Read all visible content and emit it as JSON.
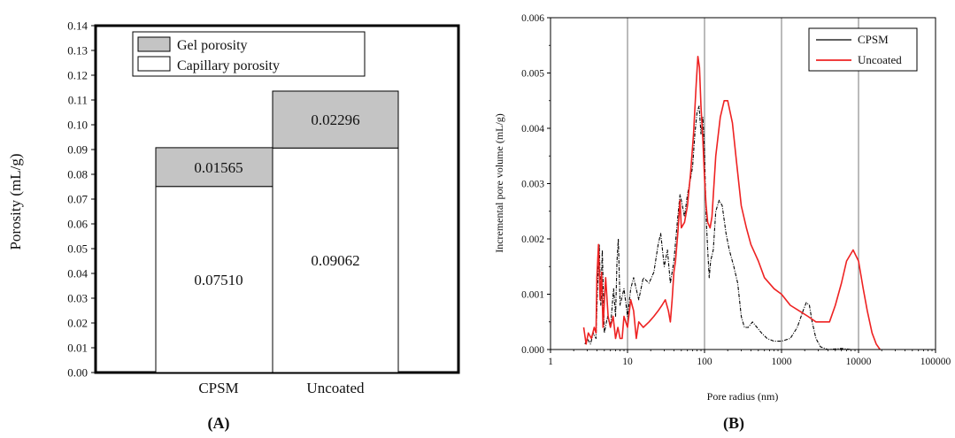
{
  "chart_data": [
    {
      "type": "bar",
      "panel_label": "(A)",
      "ylabel": "Porosity (mL/g)",
      "ylim": [
        0,
        0.14
      ],
      "ytick_step": 0.01,
      "categories": [
        "CPSM",
        "Uncoated"
      ],
      "series": [
        {
          "name": "Capillary porosity",
          "values": [
            0.0751,
            0.09062
          ],
          "labels": [
            "0.07510",
            "0.09062"
          ],
          "color": "#ffffff"
        },
        {
          "name": "Gel porosity",
          "values": [
            0.01565,
            0.02296
          ],
          "labels": [
            "0.01565",
            "0.02296"
          ],
          "color": "#c4c4c4"
        }
      ],
      "stacked": true,
      "legend": {
        "placement": "top",
        "order": [
          "Gel porosity",
          "Capillary porosity"
        ]
      }
    },
    {
      "type": "line",
      "panel_label": "(B)",
      "xlabel": "Pore radius (nm)",
      "ylabel": "Incremental pore volume  (mL/g)",
      "xscale": "log",
      "xlim": [
        1,
        100000
      ],
      "ylim": [
        0,
        0.006
      ],
      "xtick_labels": [
        "1",
        "10",
        "100",
        "1000",
        "10000",
        "100000"
      ],
      "ytick_labels": [
        "0.000",
        "0.001",
        "0.002",
        "0.003",
        "0.004",
        "0.005",
        "0.006"
      ],
      "vgrid_at": [
        10,
        100,
        1000,
        10000
      ],
      "legend": {
        "placement": "top-right"
      },
      "series": [
        {
          "name": "CPSM",
          "color": "#000000",
          "points": [
            [
              2.8,
              0.0001
            ],
            [
              3.0,
              0.0002
            ],
            [
              3.3,
              0.0001
            ],
            [
              3.6,
              0.0003
            ],
            [
              3.9,
              0.0002
            ],
            [
              4.1,
              0.0012
            ],
            [
              4.3,
              0.0019
            ],
            [
              4.5,
              0.0008
            ],
            [
              4.7,
              0.0018
            ],
            [
              5.0,
              0.0003
            ],
            [
              5.5,
              0.0006
            ],
            [
              6.0,
              0.0004
            ],
            [
              6.6,
              0.0011
            ],
            [
              7.0,
              0.0006
            ],
            [
              7.3,
              0.0016
            ],
            [
              7.6,
              0.002
            ],
            [
              8.0,
              0.0008
            ],
            [
              9.0,
              0.0011
            ],
            [
              10,
              0.0006
            ],
            [
              11,
              0.0011
            ],
            [
              12,
              0.0013
            ],
            [
              14,
              0.0009
            ],
            [
              16,
              0.0013
            ],
            [
              19,
              0.0012
            ],
            [
              22,
              0.0014
            ],
            [
              25,
              0.0019
            ],
            [
              27,
              0.0021
            ],
            [
              30,
              0.0015
            ],
            [
              33,
              0.0018
            ],
            [
              36,
              0.0012
            ],
            [
              40,
              0.0016
            ],
            [
              45,
              0.0024
            ],
            [
              48,
              0.0028
            ],
            [
              50,
              0.0027
            ],
            [
              55,
              0.0024
            ],
            [
              60,
              0.0028
            ],
            [
              66,
              0.0031
            ],
            [
              70,
              0.0033
            ],
            [
              75,
              0.0039
            ],
            [
              80,
              0.0043
            ],
            [
              85,
              0.0044
            ],
            [
              90,
              0.0039
            ],
            [
              95,
              0.0042
            ],
            [
              100,
              0.0036
            ],
            [
              105,
              0.0024
            ],
            [
              110,
              0.0018
            ],
            [
              115,
              0.0013
            ],
            [
              120,
              0.0016
            ],
            [
              130,
              0.0018
            ],
            [
              140,
              0.0025
            ],
            [
              155,
              0.0027
            ],
            [
              170,
              0.0026
            ],
            [
              190,
              0.0021
            ],
            [
              210,
              0.0018
            ],
            [
              240,
              0.0015
            ],
            [
              270,
              0.0012
            ],
            [
              300,
              0.0006
            ],
            [
              330,
              0.0004
            ],
            [
              370,
              0.0004
            ],
            [
              420,
              0.0005
            ],
            [
              480,
              0.0004
            ],
            [
              550,
              0.0003
            ],
            [
              650,
              0.0002
            ],
            [
              800,
              0.00015
            ],
            [
              1000,
              0.00015
            ],
            [
              1300,
              0.0002
            ],
            [
              1600,
              0.0004
            ],
            [
              1900,
              0.0007
            ],
            [
              2100,
              0.00085
            ],
            [
              2300,
              0.0008
            ],
            [
              2500,
              0.0005
            ],
            [
              2800,
              0.0002
            ],
            [
              3200,
              5e-05
            ],
            [
              4000,
              0
            ],
            [
              6000,
              2e-05
            ],
            [
              8000,
              0
            ],
            [
              10000,
              0
            ]
          ]
        },
        {
          "name": "Uncoated",
          "color": "#ee2222",
          "points": [
            [
              2.7,
              0.0004
            ],
            [
              2.9,
              0.0001
            ],
            [
              3.1,
              0.0003
            ],
            [
              3.4,
              0.0002
            ],
            [
              3.7,
              0.0004
            ],
            [
              3.9,
              0.0003
            ],
            [
              4.0,
              0.0013
            ],
            [
              4.2,
              0.0019
            ],
            [
              4.4,
              0.0009
            ],
            [
              4.6,
              0.0014
            ],
            [
              4.8,
              0.0004
            ],
            [
              5.2,
              0.0013
            ],
            [
              5.6,
              0.0006
            ],
            [
              6.0,
              0.0004
            ],
            [
              6.5,
              0.0006
            ],
            [
              7.0,
              0.0002
            ],
            [
              7.5,
              0.0004
            ],
            [
              8.0,
              0.0002
            ],
            [
              8.5,
              0.0002
            ],
            [
              9.0,
              0.0006
            ],
            [
              10,
              0.0004
            ],
            [
              11,
              0.0009
            ],
            [
              12,
              0.0007
            ],
            [
              13,
              0.0002
            ],
            [
              14,
              0.0005
            ],
            [
              16,
              0.0004
            ],
            [
              19,
              0.0005
            ],
            [
              22,
              0.0006
            ],
            [
              25,
              0.0007
            ],
            [
              28,
              0.0008
            ],
            [
              31,
              0.0009
            ],
            [
              34,
              0.0007
            ],
            [
              36,
              0.0005
            ],
            [
              38,
              0.0009
            ],
            [
              40,
              0.0014
            ],
            [
              42,
              0.0016
            ],
            [
              45,
              0.0021
            ],
            [
              48,
              0.0027
            ],
            [
              50,
              0.0022
            ],
            [
              55,
              0.0023
            ],
            [
              60,
              0.0026
            ],
            [
              66,
              0.0032
            ],
            [
              72,
              0.0039
            ],
            [
              78,
              0.0048
            ],
            [
              82,
              0.0053
            ],
            [
              86,
              0.0051
            ],
            [
              90,
              0.0044
            ],
            [
              95,
              0.0038
            ],
            [
              100,
              0.0031
            ],
            [
              105,
              0.0026
            ],
            [
              110,
              0.0023
            ],
            [
              118,
              0.0022
            ],
            [
              125,
              0.0024
            ],
            [
              140,
              0.0035
            ],
            [
              160,
              0.0042
            ],
            [
              180,
              0.0045
            ],
            [
              200,
              0.0045
            ],
            [
              230,
              0.0041
            ],
            [
              260,
              0.0034
            ],
            [
              300,
              0.0026
            ],
            [
              350,
              0.0022
            ],
            [
              400,
              0.0019
            ],
            [
              500,
              0.0016
            ],
            [
              600,
              0.0013
            ],
            [
              800,
              0.0011
            ],
            [
              1000,
              0.001
            ],
            [
              1300,
              0.0008
            ],
            [
              1700,
              0.0007
            ],
            [
              2200,
              0.0006
            ],
            [
              2800,
              0.0005
            ],
            [
              3500,
              0.0005
            ],
            [
              4200,
              0.0005
            ],
            [
              5000,
              0.0008
            ],
            [
              6000,
              0.0012
            ],
            [
              7000,
              0.0016
            ],
            [
              8500,
              0.0018
            ],
            [
              10000,
              0.0016
            ],
            [
              11500,
              0.0011
            ],
            [
              13000,
              0.0007
            ],
            [
              15000,
              0.0003
            ],
            [
              17000,
              0.0001
            ],
            [
              19000,
              0
            ]
          ]
        }
      ]
    }
  ]
}
